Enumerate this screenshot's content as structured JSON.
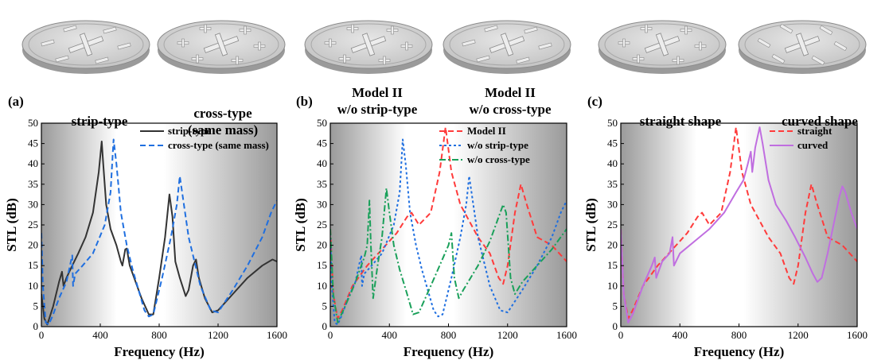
{
  "figure": {
    "plate_labels": [
      {
        "text": "strip-type"
      },
      {
        "text": "cross-type\n(same mass)"
      },
      {
        "text": "Model II\nw/o strip-type"
      },
      {
        "text": "Model II\nw/o cross-type"
      },
      {
        "text": "straight shape"
      },
      {
        "text": "curved shape"
      }
    ]
  },
  "chart_data": [
    {
      "type": "line",
      "panel_label": "(a)",
      "xlabel": "Frequency (Hz)",
      "ylabel": "STL (dB)",
      "xlim": [
        0,
        1600
      ],
      "ylim": [
        0,
        50
      ],
      "xticks": [
        0,
        400,
        800,
        1200,
        1600
      ],
      "yticks": [
        0,
        5,
        10,
        15,
        20,
        25,
        30,
        35,
        40,
        45,
        50
      ],
      "legend_position": "top-right",
      "series": [
        {
          "name": "strip-type",
          "color": "#333333",
          "style": "solid",
          "points": [
            [
              0,
              8
            ],
            [
              20,
              2
            ],
            [
              40,
              0.5
            ],
            [
              80,
              5
            ],
            [
              120,
              11
            ],
            [
              140,
              13.5
            ],
            [
              150,
              10
            ],
            [
              170,
              12
            ],
            [
              210,
              15
            ],
            [
              250,
              18
            ],
            [
              300,
              22
            ],
            [
              350,
              28
            ],
            [
              390,
              38
            ],
            [
              410,
              45.5
            ],
            [
              420,
              40
            ],
            [
              440,
              30
            ],
            [
              470,
              24
            ],
            [
              510,
              20
            ],
            [
              540,
              16
            ],
            [
              550,
              15
            ],
            [
              570,
              19
            ],
            [
              580,
              19.2
            ],
            [
              600,
              15
            ],
            [
              640,
              11
            ],
            [
              680,
              7
            ],
            [
              730,
              3
            ],
            [
              760,
              3
            ],
            [
              800,
              12
            ],
            [
              840,
              22
            ],
            [
              870,
              32.5
            ],
            [
              890,
              27
            ],
            [
              910,
              16
            ],
            [
              940,
              12
            ],
            [
              980,
              7.5
            ],
            [
              1000,
              9
            ],
            [
              1030,
              15
            ],
            [
              1050,
              16.5
            ],
            [
              1070,
              12
            ],
            [
              1110,
              7
            ],
            [
              1160,
              3.5
            ],
            [
              1200,
              4
            ],
            [
              1300,
              8
            ],
            [
              1400,
              12
            ],
            [
              1500,
              15
            ],
            [
              1570,
              16.5
            ],
            [
              1600,
              16
            ]
          ]
        },
        {
          "name": "cross-type (same mass)",
          "color": "#1f6fe0",
          "style": "dashed",
          "points": [
            [
              0,
              23
            ],
            [
              10,
              10
            ],
            [
              30,
              1
            ],
            [
              50,
              0.5
            ],
            [
              80,
              3
            ],
            [
              120,
              7
            ],
            [
              170,
              11
            ],
            [
              200,
              16
            ],
            [
              210,
              17.5
            ],
            [
              215,
              10
            ],
            [
              230,
              13
            ],
            [
              280,
              15
            ],
            [
              350,
              18
            ],
            [
              430,
              25
            ],
            [
              470,
              33
            ],
            [
              490,
              46
            ],
            [
              510,
              40
            ],
            [
              540,
              28
            ],
            [
              580,
              20
            ],
            [
              620,
              14
            ],
            [
              660,
              9
            ],
            [
              700,
              4
            ],
            [
              730,
              2.5
            ],
            [
              760,
              3
            ],
            [
              820,
              12
            ],
            [
              880,
              22
            ],
            [
              920,
              30
            ],
            [
              940,
              37
            ],
            [
              960,
              32
            ],
            [
              1000,
              22
            ],
            [
              1080,
              10
            ],
            [
              1150,
              4
            ],
            [
              1200,
              3.5
            ],
            [
              1300,
              9
            ],
            [
              1400,
              15
            ],
            [
              1500,
              22
            ],
            [
              1560,
              28
            ],
            [
              1600,
              31
            ]
          ]
        }
      ]
    },
    {
      "type": "line",
      "panel_label": "(b)",
      "xlabel": "Frequency (Hz)",
      "ylabel": "STL (dB)",
      "xlim": [
        0,
        1600
      ],
      "ylim": [
        0,
        50
      ],
      "xticks": [
        0,
        400,
        800,
        1200,
        1600
      ],
      "yticks": [
        0,
        5,
        10,
        15,
        20,
        25,
        30,
        35,
        40,
        45,
        50
      ],
      "legend_position": "top-right",
      "series": [
        {
          "name": "Model II",
          "color": "#ff3b3b",
          "style": "dashed",
          "points": [
            [
              0,
              24
            ],
            [
              20,
              8
            ],
            [
              50,
              2
            ],
            [
              80,
              4
            ],
            [
              150,
              10
            ],
            [
              250,
              15
            ],
            [
              350,
              19
            ],
            [
              450,
              23
            ],
            [
              520,
              27
            ],
            [
              550,
              28
            ],
            [
              600,
              25
            ],
            [
              680,
              28
            ],
            [
              740,
              38
            ],
            [
              780,
              49
            ],
            [
              820,
              38
            ],
            [
              880,
              30
            ],
            [
              940,
              26
            ],
            [
              1000,
              22
            ],
            [
              1080,
              18
            ],
            [
              1140,
              12
            ],
            [
              1170,
              10.5
            ],
            [
              1200,
              15
            ],
            [
              1250,
              28
            ],
            [
              1290,
              35
            ],
            [
              1330,
              30
            ],
            [
              1400,
              22
            ],
            [
              1500,
              20
            ],
            [
              1600,
              16
            ]
          ]
        },
        {
          "name": "w/o strip-type",
          "color": "#1f6fe0",
          "style": "dotted",
          "points": [
            [
              0,
              23
            ],
            [
              10,
              10
            ],
            [
              30,
              1
            ],
            [
              50,
              0.5
            ],
            [
              80,
              3
            ],
            [
              120,
              7
            ],
            [
              170,
              11
            ],
            [
              200,
              16
            ],
            [
              210,
              17.5
            ],
            [
              215,
              10
            ],
            [
              230,
              13
            ],
            [
              280,
              15
            ],
            [
              350,
              18
            ],
            [
              430,
              25
            ],
            [
              470,
              33
            ],
            [
              490,
              46
            ],
            [
              510,
              40
            ],
            [
              540,
              28
            ],
            [
              580,
              20
            ],
            [
              620,
              14
            ],
            [
              660,
              9
            ],
            [
              700,
              4
            ],
            [
              730,
              2.5
            ],
            [
              760,
              3
            ],
            [
              820,
              12
            ],
            [
              880,
              22
            ],
            [
              920,
              30
            ],
            [
              940,
              37
            ],
            [
              960,
              32
            ],
            [
              1000,
              22
            ],
            [
              1080,
              10
            ],
            [
              1150,
              4
            ],
            [
              1200,
              3.5
            ],
            [
              1300,
              9
            ],
            [
              1400,
              15
            ],
            [
              1500,
              22
            ],
            [
              1560,
              28
            ],
            [
              1600,
              31
            ]
          ]
        },
        {
          "name": "w/o cross-type",
          "color": "#1aa05a",
          "style": "dashdot",
          "points": [
            [
              0,
              24
            ],
            [
              20,
              8
            ],
            [
              50,
              1
            ],
            [
              100,
              5
            ],
            [
              160,
              10
            ],
            [
              200,
              14
            ],
            [
              230,
              17
            ],
            [
              250,
              20
            ],
            [
              265,
              31
            ],
            [
              275,
              20
            ],
            [
              290,
              7
            ],
            [
              320,
              15
            ],
            [
              350,
              22
            ],
            [
              380,
              34
            ],
            [
              400,
              28
            ],
            [
              430,
              20
            ],
            [
              470,
              14
            ],
            [
              520,
              8
            ],
            [
              560,
              3
            ],
            [
              600,
              3.5
            ],
            [
              680,
              10
            ],
            [
              740,
              15
            ],
            [
              800,
              20
            ],
            [
              820,
              23
            ],
            [
              840,
              12
            ],
            [
              870,
              7
            ],
            [
              900,
              9
            ],
            [
              1000,
              15
            ],
            [
              1080,
              21
            ],
            [
              1130,
              26
            ],
            [
              1170,
              30
            ],
            [
              1190,
              28
            ],
            [
              1220,
              12
            ],
            [
              1250,
              8
            ],
            [
              1300,
              11
            ],
            [
              1400,
              15
            ],
            [
              1500,
              19
            ],
            [
              1600,
              24
            ]
          ]
        }
      ]
    },
    {
      "type": "line",
      "panel_label": "(c)",
      "xlabel": "Frequency (Hz)",
      "ylabel": "STL (dB)",
      "xlim": [
        0,
        1600
      ],
      "ylim": [
        0,
        50
      ],
      "xticks": [
        0,
        400,
        800,
        1200,
        1600
      ],
      "yticks": [
        0,
        5,
        10,
        15,
        20,
        25,
        30,
        35,
        40,
        45,
        50
      ],
      "legend_position": "top-right",
      "series": [
        {
          "name": "straight",
          "color": "#ff3b3b",
          "style": "dashed",
          "points": [
            [
              0,
              24
            ],
            [
              20,
              8
            ],
            [
              50,
              2
            ],
            [
              80,
              4
            ],
            [
              150,
              10
            ],
            [
              250,
              15
            ],
            [
              350,
              19
            ],
            [
              450,
              23
            ],
            [
              520,
              27
            ],
            [
              550,
              28
            ],
            [
              600,
              25
            ],
            [
              680,
              28
            ],
            [
              740,
              38
            ],
            [
              780,
              49
            ],
            [
              820,
              38
            ],
            [
              880,
              30
            ],
            [
              940,
              26
            ],
            [
              1000,
              22
            ],
            [
              1080,
              18
            ],
            [
              1140,
              12
            ],
            [
              1170,
              10.5
            ],
            [
              1200,
              15
            ],
            [
              1250,
              28
            ],
            [
              1290,
              35
            ],
            [
              1330,
              30
            ],
            [
              1400,
              22
            ],
            [
              1500,
              20
            ],
            [
              1600,
              16
            ]
          ]
        },
        {
          "name": "curved",
          "color": "#c06ee0",
          "style": "solid",
          "points": [
            [
              0,
              24
            ],
            [
              20,
              8
            ],
            [
              50,
              1
            ],
            [
              80,
              3
            ],
            [
              150,
              10
            ],
            [
              210,
              15
            ],
            [
              230,
              17
            ],
            [
              240,
              12
            ],
            [
              280,
              16
            ],
            [
              330,
              18
            ],
            [
              350,
              22
            ],
            [
              360,
              15
            ],
            [
              400,
              18
            ],
            [
              500,
              21
            ],
            [
              600,
              24
            ],
            [
              700,
              28
            ],
            [
              780,
              33
            ],
            [
              830,
              36
            ],
            [
              860,
              40
            ],
            [
              880,
              43
            ],
            [
              890,
              38
            ],
            [
              910,
              44
            ],
            [
              940,
              49
            ],
            [
              960,
              45
            ],
            [
              1000,
              36
            ],
            [
              1050,
              30
            ],
            [
              1120,
              26
            ],
            [
              1180,
              22
            ],
            [
              1250,
              17
            ],
            [
              1300,
              13
            ],
            [
              1330,
              11
            ],
            [
              1360,
              12
            ],
            [
              1400,
              18
            ],
            [
              1440,
              25
            ],
            [
              1480,
              32
            ],
            [
              1500,
              34.5
            ],
            [
              1520,
              33
            ],
            [
              1560,
              28
            ],
            [
              1600,
              24
            ]
          ]
        }
      ]
    }
  ]
}
